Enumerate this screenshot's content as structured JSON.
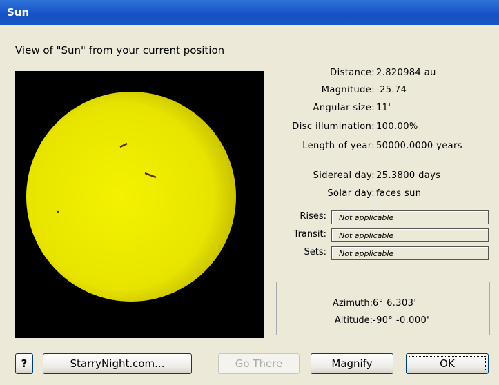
{
  "window": {
    "title": "Sun",
    "subtitle": "View of \"Sun\" from your current position"
  },
  "info": [
    {
      "label": "Distance:",
      "value": "2.820984 au"
    },
    {
      "label": "Magnitude:",
      "value": "-25.74"
    },
    {
      "label": "Angular size:",
      "value": "11'"
    },
    {
      "label": "Disc illumination:",
      "value": "100.00%"
    },
    {
      "label": "Length of year:",
      "value": "50000.0000 years"
    },
    {
      "label": "Sidereal day:",
      "value": "25.3800 days"
    },
    {
      "label": "Solar day:",
      "value": "faces sun"
    }
  ],
  "times": [
    {
      "label": "Rises:",
      "value": "Not applicable"
    },
    {
      "label": "Transit:",
      "value": "Not applicable"
    },
    {
      "label": "Sets:",
      "value": "Not applicable"
    }
  ],
  "position": [
    {
      "label": "Azimuth:",
      "value": "6° 6.303'"
    },
    {
      "label": "Altitude:",
      "value": "-90° -0.000'"
    }
  ],
  "buttons": {
    "help": "?",
    "site": "StarryNight.com...",
    "go": "Go There",
    "magnify": "Magnify",
    "ok": "OK"
  }
}
